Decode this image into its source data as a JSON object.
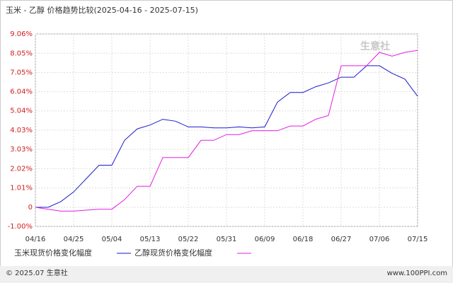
{
  "chart_data": {
    "type": "line",
    "title": "玉米 - 乙醇 价格趋势比较(2025-04-16 - 2025-07-15)",
    "watermark": "生意社",
    "footer_left": "© 2025.07 生意社",
    "footer_right": "www.100PPI.com",
    "categories": [
      "04/16",
      null,
      null,
      "04/25",
      null,
      null,
      "05/04",
      null,
      null,
      "05/13",
      null,
      null,
      "05/22",
      null,
      null,
      "05/31",
      null,
      null,
      "06/09",
      null,
      null,
      "06/18",
      null,
      null,
      "06/27",
      null,
      null,
      "07/06",
      null,
      null,
      "07/15"
    ],
    "series": [
      {
        "name": "玉米现货价格变化幅度",
        "color": "#1a1acc",
        "values": [
          0,
          0,
          0.3,
          0.8,
          1.5,
          2.2,
          2.2,
          3.5,
          4.1,
          4.3,
          4.6,
          4.5,
          4.2,
          4.2,
          4.15,
          4.15,
          4.2,
          4.15,
          4.2,
          5.5,
          6.0,
          6.0,
          6.3,
          6.5,
          6.8,
          6.8,
          7.4,
          7.4,
          7.0,
          6.7,
          5.8
        ]
      },
      {
        "name": "乙醇现货价格变化幅度",
        "color": "#e020e0",
        "values": [
          0,
          -0.1,
          -0.2,
          -0.2,
          -0.15,
          -0.1,
          -0.1,
          0.4,
          1.1,
          1.1,
          2.6,
          2.6,
          2.6,
          3.5,
          3.5,
          3.8,
          3.8,
          4.0,
          4.0,
          4.0,
          4.25,
          4.25,
          4.6,
          4.8,
          7.4,
          7.4,
          7.4,
          8.1,
          7.9,
          8.1,
          8.2
        ]
      }
    ],
    "ylim": [
      -1.0,
      9.06
    ],
    "yticks": [
      {
        "value": -1.0,
        "label": "-1.00%"
      },
      0,
      {
        "value": 1.01,
        "label": "1.01%"
      },
      {
        "value": 2.02,
        "label": "2.02%"
      },
      {
        "value": 3.03,
        "label": "3.03%"
      },
      {
        "value": 4.03,
        "label": "4.03%"
      },
      {
        "value": 5.04,
        "label": "5.04%"
      },
      {
        "value": 6.04,
        "label": "6.04%"
      },
      {
        "value": 7.05,
        "label": "7.05%"
      },
      {
        "value": 8.05,
        "label": "8.05%"
      },
      {
        "value": 9.06,
        "label": "9.06%"
      }
    ],
    "grid": true
  }
}
